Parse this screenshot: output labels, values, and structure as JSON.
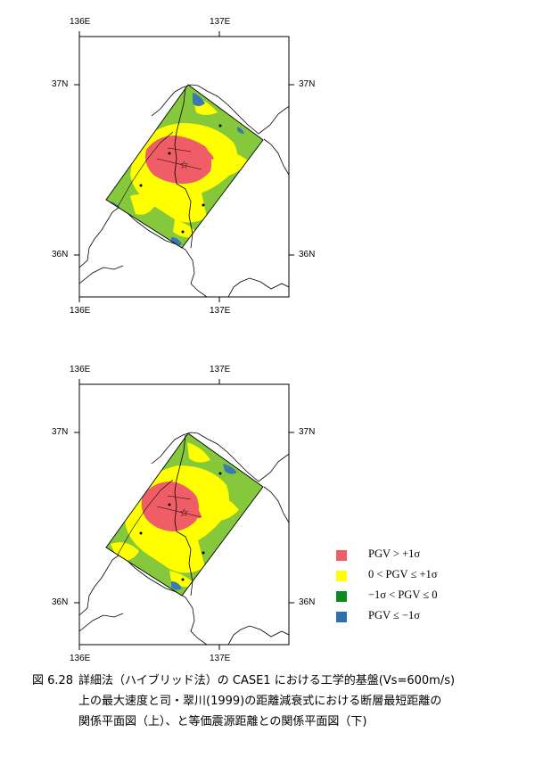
{
  "maps": [
    {
      "id": "top",
      "lon_labels": [
        "136E",
        "137E"
      ],
      "lat_labels": [
        "37N",
        "36N"
      ]
    },
    {
      "id": "bottom",
      "lon_labels": [
        "136E",
        "137E"
      ],
      "lat_labels": [
        "37N",
        "36N"
      ]
    }
  ],
  "legend": {
    "items": [
      {
        "label": "PGV > +1σ",
        "color": "#ef5d66"
      },
      {
        "label": "0 < PGV ≤ +1σ",
        "color": "#ffff00"
      },
      {
        "label": "−1σ < PGV ≤ 0",
        "color": "#0a8a1a"
      },
      {
        "label": "PGV ≤ −1σ",
        "color": "#2f6fad"
      }
    ]
  },
  "colors": {
    "high": "#ef5d66",
    "mid_high": "#ffff00",
    "mid_low": "#86c83c",
    "low": "#3a78b6"
  },
  "caption": {
    "figure_number": "図 6.28",
    "lines": [
      "詳細法（ハイブリッド法）の CASE1 における工学的基盤(Vs=600m/s)",
      "上の最大速度と司・翠川(1999)の距離減衰式における断層最短距離の",
      "関係平面図（上）、と等価震源距離との関係平面図（下)"
    ]
  }
}
